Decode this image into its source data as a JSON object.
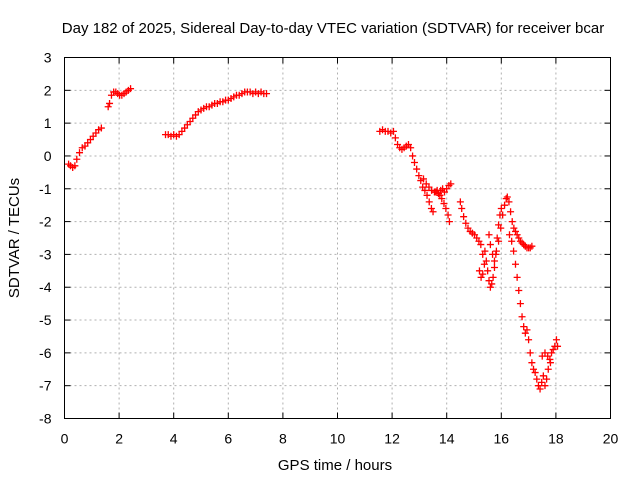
{
  "chart_data": {
    "type": "scatter",
    "title": "Day 182 of 2025, Sidereal Day-to-day VTEC variation (SDTVAR) for receiver bcar",
    "xlabel": "GPS time / hours",
    "ylabel": "SDTVAR / TECUs",
    "xlim": [
      0,
      20
    ],
    "ylim": [
      -8,
      3
    ],
    "xticks": [
      0,
      2,
      4,
      6,
      8,
      10,
      12,
      14,
      16,
      18,
      20
    ],
    "yticks": [
      3,
      2,
      1,
      0,
      -1,
      -2,
      -3,
      -4,
      -5,
      -6,
      -7,
      -8
    ],
    "xtick_labels": [
      "0",
      "2",
      "4",
      "6",
      "8",
      "10",
      "12",
      "14",
      "16",
      "18",
      "20"
    ],
    "ytick_labels": [
      "3",
      "2",
      "1",
      "0",
      "-1",
      "-2",
      "-3",
      "-4",
      "-5",
      "-6",
      "-7",
      "-8"
    ],
    "grid": true,
    "marker": "+",
    "color": "#ff0000",
    "series": [
      {
        "name": "SDTVAR",
        "points": [
          [
            0.15,
            -0.25
          ],
          [
            0.22,
            -0.3
          ],
          [
            0.3,
            -0.35
          ],
          [
            0.38,
            -0.3
          ],
          [
            0.45,
            -0.1
          ],
          [
            0.55,
            0.1
          ],
          [
            0.65,
            0.25
          ],
          [
            0.75,
            0.3
          ],
          [
            0.85,
            0.4
          ],
          [
            0.95,
            0.5
          ],
          [
            1.05,
            0.6
          ],
          [
            1.15,
            0.7
          ],
          [
            1.25,
            0.8
          ],
          [
            1.35,
            0.85
          ],
          [
            1.6,
            1.5
          ],
          [
            1.65,
            1.6
          ],
          [
            1.72,
            1.85
          ],
          [
            1.8,
            1.95
          ],
          [
            1.88,
            1.95
          ],
          [
            1.95,
            1.9
          ],
          [
            2.02,
            1.85
          ],
          [
            2.1,
            1.85
          ],
          [
            2.18,
            1.9
          ],
          [
            2.26,
            1.95
          ],
          [
            2.34,
            2.0
          ],
          [
            2.42,
            2.05
          ],
          [
            3.7,
            0.65
          ],
          [
            3.8,
            0.65
          ],
          [
            3.9,
            0.6
          ],
          [
            4.0,
            0.65
          ],
          [
            4.1,
            0.6
          ],
          [
            4.2,
            0.65
          ],
          [
            4.3,
            0.75
          ],
          [
            4.4,
            0.85
          ],
          [
            4.5,
            0.95
          ],
          [
            4.6,
            1.05
          ],
          [
            4.7,
            1.15
          ],
          [
            4.8,
            1.25
          ],
          [
            4.9,
            1.35
          ],
          [
            5.0,
            1.4
          ],
          [
            5.1,
            1.45
          ],
          [
            5.2,
            1.5
          ],
          [
            5.3,
            1.5
          ],
          [
            5.4,
            1.55
          ],
          [
            5.5,
            1.6
          ],
          [
            5.6,
            1.6
          ],
          [
            5.7,
            1.65
          ],
          [
            5.8,
            1.65
          ],
          [
            5.9,
            1.7
          ],
          [
            6.0,
            1.7
          ],
          [
            6.1,
            1.75
          ],
          [
            6.2,
            1.8
          ],
          [
            6.3,
            1.85
          ],
          [
            6.4,
            1.85
          ],
          [
            6.5,
            1.9
          ],
          [
            6.6,
            1.95
          ],
          [
            6.7,
            1.95
          ],
          [
            6.8,
            1.95
          ],
          [
            6.9,
            1.9
          ],
          [
            7.0,
            1.95
          ],
          [
            7.1,
            1.9
          ],
          [
            7.2,
            1.95
          ],
          [
            7.3,
            1.9
          ],
          [
            7.4,
            1.9
          ],
          [
            11.55,
            0.75
          ],
          [
            11.65,
            0.8
          ],
          [
            11.75,
            0.75
          ],
          [
            11.85,
            0.75
          ],
          [
            11.95,
            0.7
          ],
          [
            12.05,
            0.75
          ],
          [
            12.12,
            0.55
          ],
          [
            12.2,
            0.35
          ],
          [
            12.28,
            0.25
          ],
          [
            12.36,
            0.2
          ],
          [
            12.44,
            0.25
          ],
          [
            12.52,
            0.3
          ],
          [
            12.6,
            0.35
          ],
          [
            12.68,
            0.25
          ],
          [
            12.75,
            0.0
          ],
          [
            12.82,
            -0.2
          ],
          [
            12.9,
            -0.4
          ],
          [
            12.98,
            -0.6
          ],
          [
            13.05,
            -0.75
          ],
          [
            13.12,
            -0.95
          ],
          [
            13.2,
            -1.05
          ],
          [
            13.28,
            -1.2
          ],
          [
            13.36,
            -1.4
          ],
          [
            13.44,
            -1.6
          ],
          [
            13.5,
            -1.7
          ],
          [
            13.15,
            -0.7
          ],
          [
            13.25,
            -0.85
          ],
          [
            13.35,
            -0.95
          ],
          [
            13.45,
            -1.05
          ],
          [
            13.55,
            -1.1
          ],
          [
            13.65,
            -1.05
          ],
          [
            13.75,
            -1.2
          ],
          [
            13.82,
            -1.3
          ],
          [
            13.9,
            -1.45
          ],
          [
            13.97,
            -1.6
          ],
          [
            14.05,
            -1.8
          ],
          [
            14.1,
            -2.0
          ],
          [
            13.6,
            -1.1
          ],
          [
            13.7,
            -1.15
          ],
          [
            13.78,
            -1.05
          ],
          [
            13.85,
            -1.0
          ],
          [
            13.92,
            -1.1
          ],
          [
            14.0,
            -1.0
          ],
          [
            14.08,
            -0.9
          ],
          [
            14.15,
            -0.85
          ],
          [
            14.5,
            -1.4
          ],
          [
            14.55,
            -1.6
          ],
          [
            14.62,
            -1.85
          ],
          [
            14.7,
            -2.05
          ],
          [
            14.78,
            -2.2
          ],
          [
            14.86,
            -2.3
          ],
          [
            14.94,
            -2.35
          ],
          [
            15.02,
            -2.4
          ],
          [
            15.1,
            -2.5
          ],
          [
            15.18,
            -2.6
          ],
          [
            15.25,
            -2.7
          ],
          [
            15.32,
            -3.0
          ],
          [
            15.38,
            -3.3
          ],
          [
            15.32,
            -3.6
          ],
          [
            15.26,
            -3.7
          ],
          [
            15.2,
            -3.5
          ],
          [
            15.4,
            -2.9
          ],
          [
            15.45,
            -3.2
          ],
          [
            15.5,
            -3.5
          ],
          [
            15.55,
            -3.8
          ],
          [
            15.6,
            -4.0
          ],
          [
            15.65,
            -3.9
          ],
          [
            15.7,
            -3.7
          ],
          [
            15.75,
            -3.4
          ],
          [
            15.8,
            -3.0
          ],
          [
            15.85,
            -2.5
          ],
          [
            15.9,
            -2.1
          ],
          [
            15.95,
            -1.8
          ],
          [
            16.0,
            -1.6
          ],
          [
            15.55,
            -2.4
          ],
          [
            15.6,
            -2.7
          ],
          [
            15.68,
            -3.0
          ],
          [
            15.75,
            -3.2
          ],
          [
            15.82,
            -2.9
          ],
          [
            15.9,
            -2.6
          ],
          [
            15.98,
            -2.2
          ],
          [
            16.05,
            -1.8
          ],
          [
            16.12,
            -1.5
          ],
          [
            16.18,
            -1.3
          ],
          [
            16.22,
            -1.25
          ],
          [
            16.28,
            -1.4
          ],
          [
            16.34,
            -1.7
          ],
          [
            16.4,
            -2.0
          ],
          [
            16.46,
            -2.2
          ],
          [
            16.52,
            -2.3
          ],
          [
            16.58,
            -2.4
          ],
          [
            16.64,
            -2.5
          ],
          [
            16.7,
            -2.6
          ],
          [
            16.76,
            -2.65
          ],
          [
            16.82,
            -2.7
          ],
          [
            16.88,
            -2.75
          ],
          [
            16.94,
            -2.8
          ],
          [
            17.0,
            -2.8
          ],
          [
            17.06,
            -2.8
          ],
          [
            17.12,
            -2.75
          ],
          [
            16.3,
            -2.4
          ],
          [
            16.38,
            -2.6
          ],
          [
            16.45,
            -2.9
          ],
          [
            16.52,
            -3.3
          ],
          [
            16.58,
            -3.7
          ],
          [
            16.64,
            -4.1
          ],
          [
            16.7,
            -4.5
          ],
          [
            16.76,
            -4.9
          ],
          [
            16.82,
            -5.2
          ],
          [
            16.88,
            -5.4
          ],
          [
            16.94,
            -5.3
          ],
          [
            17.0,
            -5.6
          ],
          [
            17.06,
            -6.0
          ],
          [
            17.12,
            -6.3
          ],
          [
            17.18,
            -6.5
          ],
          [
            17.24,
            -6.6
          ],
          [
            17.3,
            -6.8
          ],
          [
            17.36,
            -7.0
          ],
          [
            17.42,
            -7.1
          ],
          [
            17.48,
            -6.9
          ],
          [
            17.54,
            -6.7
          ],
          [
            17.6,
            -7.0
          ],
          [
            17.66,
            -6.8
          ],
          [
            17.72,
            -6.5
          ],
          [
            17.78,
            -6.2
          ],
          [
            17.84,
            -6.0
          ],
          [
            17.9,
            -5.9
          ],
          [
            17.96,
            -5.8
          ],
          [
            18.02,
            -5.6
          ],
          [
            18.06,
            -5.8
          ],
          [
            17.5,
            -6.1
          ],
          [
            17.6,
            -6.0
          ],
          [
            17.7,
            -6.1
          ],
          [
            17.8,
            -6.3
          ]
        ]
      }
    ]
  }
}
